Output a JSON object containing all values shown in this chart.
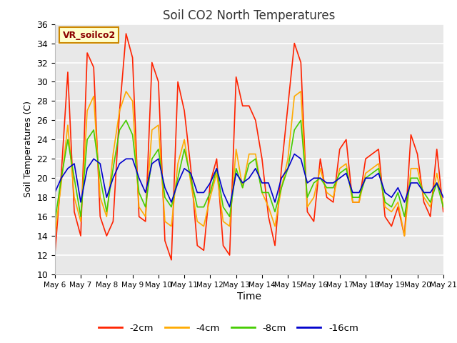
{
  "title": "Soil CO2 North Temperatures",
  "xlabel": "Time",
  "ylabel": "Soil Temperatures (C)",
  "ylim": [
    10,
    36
  ],
  "yticks": [
    10,
    12,
    14,
    16,
    18,
    20,
    22,
    24,
    26,
    28,
    30,
    32,
    34,
    36
  ],
  "legend_label": "VR_soilco2",
  "series_labels": [
    "-2cm",
    "-4cm",
    "-8cm",
    "-16cm"
  ],
  "series_colors": [
    "#ff2200",
    "#ffaa00",
    "#44cc00",
    "#0000cc"
  ],
  "plot_bg_color": "#e8e8e8",
  "x_labels": [
    "May 6",
    "May 7",
    "May 8",
    "May 9",
    "May 10",
    "May 11",
    "May 12",
    "May 13",
    "May 14",
    "May 15",
    "May 16",
    "May 17",
    "May 18",
    "May 19",
    "May 20",
    "May 21"
  ],
  "d2cm": [
    12.0,
    20.5,
    31.0,
    16.5,
    14.0,
    33.0,
    31.5,
    16.0,
    14.0,
    15.5,
    27.0,
    35.0,
    32.5,
    16.0,
    15.5,
    32.0,
    30.0,
    13.5,
    11.5,
    30.0,
    27.0,
    21.0,
    13.0,
    12.5,
    19.5,
    22.0,
    13.0,
    12.0,
    30.5,
    27.5,
    27.5,
    26.0,
    22.0,
    16.0,
    13.0,
    21.0,
    27.5,
    34.0,
    32.0,
    16.5,
    15.5,
    22.0,
    18.0,
    17.5,
    23.0,
    24.0,
    17.5,
    17.5,
    22.0,
    22.5,
    23.0,
    16.0,
    15.0,
    17.0,
    14.0,
    24.5,
    22.5,
    17.5,
    16.0,
    23.0,
    16.5
  ],
  "d4cm": [
    14.0,
    19.5,
    25.5,
    18.0,
    15.5,
    27.0,
    28.5,
    18.0,
    16.0,
    22.5,
    27.0,
    29.0,
    28.0,
    17.0,
    16.0,
    25.0,
    25.5,
    15.5,
    15.0,
    21.5,
    24.0,
    19.5,
    15.5,
    15.0,
    18.0,
    20.5,
    15.5,
    15.0,
    23.0,
    19.0,
    22.5,
    22.5,
    18.5,
    17.0,
    15.0,
    19.0,
    22.0,
    28.5,
    29.0,
    17.0,
    18.0,
    21.0,
    18.5,
    18.0,
    21.0,
    21.5,
    17.5,
    17.5,
    20.5,
    21.0,
    21.5,
    17.0,
    16.5,
    17.5,
    14.0,
    21.0,
    21.0,
    18.0,
    17.0,
    20.5,
    17.0
  ],
  "d8cm": [
    15.5,
    20.0,
    24.0,
    20.0,
    16.0,
    24.0,
    25.0,
    20.0,
    16.5,
    21.0,
    25.0,
    26.0,
    24.5,
    18.5,
    17.0,
    22.0,
    23.0,
    18.0,
    17.0,
    20.0,
    23.0,
    20.0,
    17.0,
    17.0,
    18.5,
    21.0,
    17.0,
    16.0,
    21.0,
    19.0,
    21.5,
    22.0,
    18.5,
    18.5,
    16.5,
    19.0,
    21.0,
    25.0,
    26.0,
    18.0,
    19.5,
    20.0,
    19.0,
    19.0,
    20.5,
    21.0,
    18.0,
    18.0,
    20.0,
    20.5,
    21.0,
    17.5,
    17.0,
    18.5,
    16.0,
    20.0,
    20.0,
    18.5,
    17.5,
    19.5,
    17.0
  ],
  "d16cm": [
    18.5,
    20.0,
    21.0,
    21.5,
    17.5,
    21.0,
    22.0,
    21.5,
    18.0,
    20.0,
    21.5,
    22.0,
    22.0,
    20.0,
    18.5,
    21.5,
    22.0,
    19.0,
    17.5,
    19.5,
    21.0,
    20.5,
    18.5,
    18.5,
    19.5,
    21.0,
    18.5,
    17.0,
    20.5,
    19.5,
    20.0,
    21.0,
    19.5,
    19.5,
    17.5,
    20.0,
    21.0,
    22.5,
    22.0,
    19.5,
    20.0,
    20.0,
    19.5,
    19.5,
    20.0,
    20.5,
    18.5,
    18.5,
    20.0,
    20.0,
    20.5,
    18.5,
    18.0,
    19.0,
    17.5,
    19.5,
    19.5,
    18.5,
    18.5,
    19.5,
    18.0
  ]
}
